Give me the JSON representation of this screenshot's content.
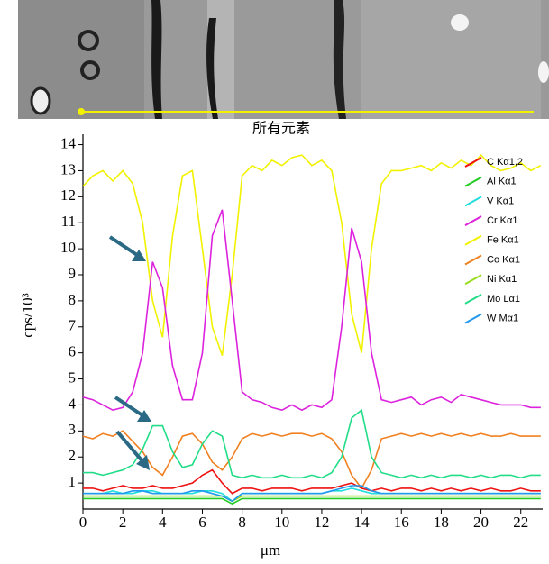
{
  "chart_data": {
    "type": "line",
    "title": "所有元素",
    "x_label": "μm",
    "y_label": "cps/10³",
    "xlim": [
      0,
      23.1
    ],
    "ylim": [
      0,
      14.4
    ],
    "xticks": [
      0,
      2,
      4,
      6,
      8,
      10,
      12,
      14,
      16,
      18,
      20,
      22
    ],
    "yticks": [
      1,
      2,
      3,
      4,
      5,
      6,
      7,
      8,
      9,
      10,
      11,
      12,
      13,
      14
    ],
    "x": [
      0,
      0.5,
      1,
      1.5,
      2,
      2.5,
      3,
      3.5,
      4,
      4.5,
      5,
      5.5,
      6,
      6.5,
      7,
      7.5,
      8,
      8.5,
      9,
      9.5,
      10,
      10.5,
      11,
      11.5,
      12,
      12.5,
      13,
      13.5,
      14,
      14.5,
      15,
      15.5,
      16,
      16.5,
      17,
      17.5,
      18,
      18.5,
      19,
      19.5,
      20,
      20.5,
      21,
      21.5,
      22,
      22.5,
      23
    ],
    "series": [
      {
        "name": "C Kα1,2",
        "color": "#ee1111",
        "values": [
          0.8,
          0.8,
          0.7,
          0.8,
          0.9,
          0.8,
          0.8,
          0.9,
          0.8,
          0.8,
          0.9,
          1,
          1.3,
          1.5,
          1,
          0.6,
          0.8,
          0.8,
          0.7,
          0.8,
          0.8,
          0.8,
          0.7,
          0.8,
          0.8,
          0.8,
          0.9,
          1,
          0.8,
          0.7,
          0.8,
          0.7,
          0.8,
          0.8,
          0.7,
          0.8,
          0.7,
          0.8,
          0.7,
          0.8,
          0.7,
          0.8,
          0.7,
          0.7,
          0.8,
          0.7,
          0.7
        ]
      },
      {
        "name": "Al Kα1",
        "color": "#22cc22",
        "values": [
          0.4,
          0.4,
          0.4,
          0.4,
          0.4,
          0.4,
          0.4,
          0.4,
          0.4,
          0.4,
          0.4,
          0.4,
          0.4,
          0.4,
          0.4,
          0.2,
          0.4,
          0.4,
          0.4,
          0.4,
          0.4,
          0.4,
          0.4,
          0.4,
          0.4,
          0.4,
          0.4,
          0.4,
          0.4,
          0.4,
          0.4,
          0.4,
          0.4,
          0.4,
          0.4,
          0.4,
          0.4,
          0.4,
          0.4,
          0.4,
          0.4,
          0.4,
          0.4,
          0.4,
          0.4,
          0.4,
          0.4
        ]
      },
      {
        "name": "V Kα1",
        "color": "#22dddd",
        "values": [
          0.6,
          0.6,
          0.6,
          0.7,
          0.6,
          0.6,
          0.7,
          0.7,
          0.6,
          0.6,
          0.6,
          0.6,
          0.7,
          0.7,
          0.6,
          0.3,
          0.6,
          0.6,
          0.6,
          0.6,
          0.6,
          0.6,
          0.6,
          0.6,
          0.6,
          0.7,
          0.7,
          0.8,
          0.7,
          0.6,
          0.6,
          0.6,
          0.6,
          0.6,
          0.6,
          0.6,
          0.6,
          0.6,
          0.6,
          0.6,
          0.6,
          0.6,
          0.6,
          0.6,
          0.6,
          0.6,
          0.6
        ]
      },
      {
        "name": "Cr Kα1",
        "color": "#dd22dd",
        "values": [
          4.3,
          4.2,
          4,
          3.8,
          3.9,
          4.5,
          6,
          9.5,
          8.5,
          5.5,
          4.2,
          4.2,
          6,
          10.5,
          11.5,
          8,
          4.5,
          4.2,
          4.1,
          3.9,
          3.8,
          4,
          3.8,
          4,
          3.9,
          4.2,
          7,
          10.8,
          9.5,
          6,
          4.2,
          4.1,
          4.2,
          4.3,
          4,
          4.2,
          4.3,
          4.1,
          4.4,
          4.3,
          4.2,
          4.1,
          4,
          4,
          4,
          3.9,
          3.9
        ]
      },
      {
        "name": "Fe Kα1",
        "color": "#f2f200",
        "values": [
          12.4,
          12.8,
          13,
          12.6,
          13,
          12.5,
          11,
          8,
          6.6,
          10.5,
          12.8,
          13,
          10,
          7,
          5.9,
          9,
          12.8,
          13.2,
          13,
          13.4,
          13.2,
          13.5,
          13.6,
          13.2,
          13.4,
          13,
          11,
          7.5,
          6,
          10,
          12.5,
          13,
          13,
          13.1,
          13.2,
          13,
          13.3,
          13.1,
          13.4,
          13.2,
          13.6,
          13.2,
          13,
          13.1,
          13.3,
          13,
          13.2
        ]
      },
      {
        "name": "Co Kα1",
        "color": "#f08020",
        "values": [
          2.8,
          2.7,
          2.9,
          2.8,
          3,
          2.6,
          2.2,
          1.6,
          1.3,
          2,
          2.8,
          2.9,
          2.5,
          1.8,
          1.5,
          2,
          2.7,
          2.9,
          2.8,
          2.9,
          2.8,
          2.9,
          2.9,
          2.8,
          2.9,
          2.7,
          2.2,
          1.3,
          0.8,
          1.5,
          2.7,
          2.8,
          2.9,
          2.8,
          2.9,
          2.8,
          2.9,
          2.8,
          2.9,
          2.8,
          2.9,
          2.8,
          2.8,
          2.9,
          2.8,
          2.8,
          2.8
        ]
      },
      {
        "name": "Ni Kα1",
        "color": "#99dd22",
        "values": [
          0.5,
          0.5,
          0.5,
          0.5,
          0.5,
          0.5,
          0.5,
          0.5,
          0.5,
          0.5,
          0.5,
          0.5,
          0.5,
          0.5,
          0.5,
          0.3,
          0.5,
          0.5,
          0.5,
          0.5,
          0.5,
          0.5,
          0.5,
          0.5,
          0.5,
          0.5,
          0.5,
          0.5,
          0.5,
          0.5,
          0.5,
          0.5,
          0.5,
          0.5,
          0.5,
          0.5,
          0.5,
          0.5,
          0.5,
          0.5,
          0.5,
          0.5,
          0.5,
          0.5,
          0.5,
          0.5,
          0.5
        ]
      },
      {
        "name": "Mo Lα1",
        "color": "#22dd88",
        "values": [
          1.4,
          1.4,
          1.3,
          1.4,
          1.5,
          1.7,
          2.3,
          3.2,
          3.2,
          2.2,
          1.6,
          1.7,
          2.5,
          3,
          2.8,
          1.3,
          1.2,
          1.3,
          1.2,
          1.2,
          1.3,
          1.2,
          1.2,
          1.3,
          1.2,
          1.4,
          2,
          3.5,
          3.8,
          2,
          1.4,
          1.3,
          1.2,
          1.3,
          1.2,
          1.3,
          1.2,
          1.3,
          1.3,
          1.2,
          1.3,
          1.2,
          1.3,
          1.3,
          1.2,
          1.3,
          1.3
        ]
      },
      {
        "name": "W Mα1",
        "color": "#2299ee",
        "values": [
          0.6,
          0.6,
          0.6,
          0.6,
          0.6,
          0.7,
          0.7,
          0.6,
          0.6,
          0.6,
          0.6,
          0.7,
          0.7,
          0.6,
          0.5,
          0.3,
          0.6,
          0.6,
          0.6,
          0.6,
          0.6,
          0.6,
          0.6,
          0.6,
          0.6,
          0.7,
          0.8,
          0.9,
          0.9,
          0.7,
          0.6,
          0.6,
          0.6,
          0.6,
          0.6,
          0.6,
          0.6,
          0.6,
          0.6,
          0.6,
          0.6,
          0.6,
          0.6,
          0.6,
          0.6,
          0.6,
          0.6
        ]
      }
    ]
  }
}
